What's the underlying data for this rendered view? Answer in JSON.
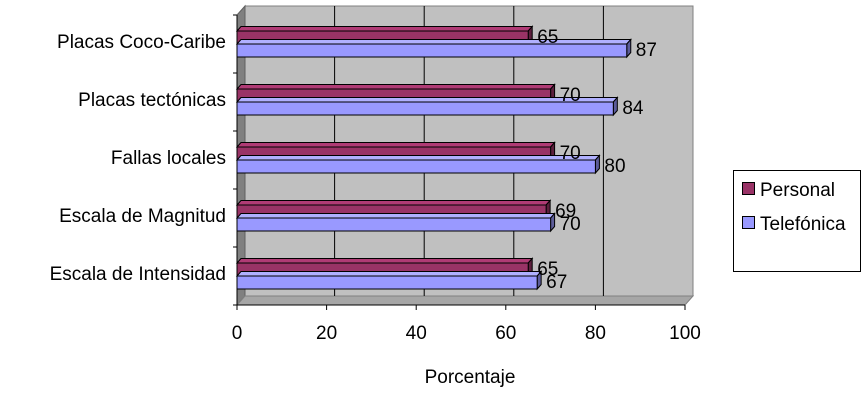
{
  "chart_data": {
    "type": "bar",
    "orientation": "horizontal",
    "categories": [
      "Escala de Intensidad",
      "Escala de Magnitud",
      "Fallas locales",
      "Placas tectónicas",
      "Placas Coco-Caribe"
    ],
    "series": [
      {
        "name": "Personal",
        "values": [
          65,
          69,
          70,
          70,
          65
        ],
        "color": "#993366"
      },
      {
        "name": "Telefónica",
        "values": [
          67,
          70,
          80,
          84,
          87
        ],
        "color": "#9999FF"
      }
    ],
    "xlabel": "Porcentaje",
    "xlim": [
      0,
      100
    ],
    "xticks": [
      "0",
      "20",
      "40",
      "60",
      "80",
      "100"
    ],
    "grid": true,
    "legend": "right",
    "three_d": true,
    "wall_color": "#C0C0C0"
  }
}
